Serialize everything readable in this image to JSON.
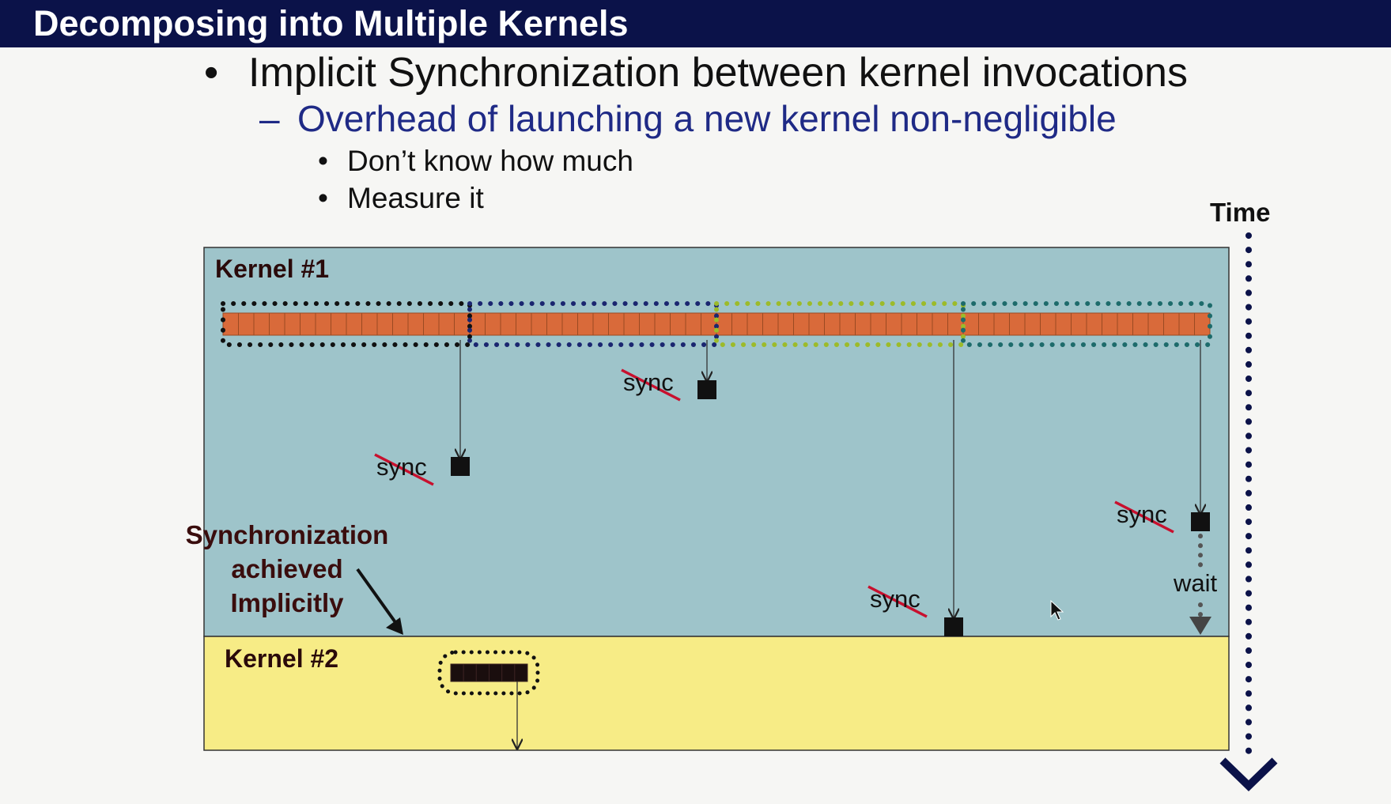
{
  "slide": {
    "title": "Decomposing into Multiple Kernels",
    "bullet_1": "Implicit Synchronization between kernel invocations",
    "sub_bullet": "Overhead of launching a new kernel non-negligible",
    "points": [
      "Don’t know how much",
      "Measure it"
    ],
    "bullet_marker": "•",
    "dash_marker": "–"
  },
  "diagram": {
    "time_label": "Time",
    "kernel1_label": "Kernel #1",
    "kernel2_label": "Kernel #2",
    "sync_label": "sync",
    "wait_label": "wait",
    "note_lines": [
      "Synchronization",
      "achieved",
      "Implicitly"
    ],
    "cell_count": 64,
    "block_count": 4,
    "kernel2_cell_count": 6,
    "colors": {
      "title_bar": "#0b1249",
      "sub_bullet_text": "#1f2a86",
      "kernel1_bg": "#9ec4ca",
      "kernel2_bg": "#f7ec86",
      "cell_fill": "#d96a3a",
      "strike": "#c8102e",
      "block_outlines": [
        "#111111",
        "#1a2670",
        "#9cbb2a",
        "#1d6b6b"
      ]
    }
  }
}
